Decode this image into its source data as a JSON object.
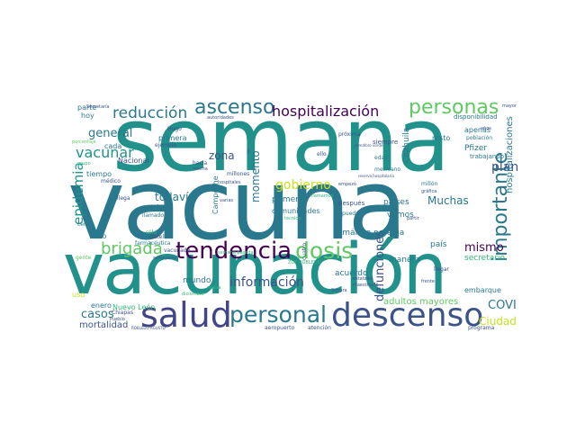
{
  "colors": {
    "teal": "#21918c",
    "teal_dark": "#2a788e",
    "blue": "#3b528b",
    "indigo": "#414487",
    "purple": "#440154",
    "green": "#5ec962",
    "green_dark": "#35b779",
    "yellow": "#c8e020",
    "yellow_bright": "#fde725"
  },
  "words": {
    "semana": "semana",
    "vacuna": "vacuna",
    "vacunacion": "vacunación",
    "salud": "salud",
    "descenso": "descenso",
    "personal": "personal",
    "tendencia": "tendencia",
    "dosis": "dosis",
    "importante": "importante",
    "personas": "personas",
    "ascenso": "ascenso",
    "hospitalizacion": "hospitalización",
    "reduccion": "reducción",
    "brigada": "brigada",
    "vacunar": "vacunar",
    "general": "general",
    "epidemia": "epidemia",
    "informacion": "información",
    "gobierno": "gobierno",
    "plan": "plan",
    "mismo": "mismo",
    "muchas": "Muchas",
    "todavia": "todavía",
    "casos": "casos",
    "covid": "COVID",
    "ciudad": "Ciudad",
    "zona": "zona",
    "momento": "momento",
    "defunciones": "defunciones",
    "hospitalizaciones": "hospitalizaciones",
    "mortalidad": "mortalidad",
    "parte": "parte",
    "hoy": "hoy",
    "tiempo": "tiempo",
    "cada": "cada",
    "nacional": "Nacional",
    "primera": "primera",
    "primero": "primero",
    "toda": "toda",
    "mundo": "mundo",
    "enero": "enero",
    "nuevo_leon": "Nuevo León",
    "semaforo_naranja": "semáforo naranja",
    "adultos_mayores": "adultos mayores",
    "paises": "países",
    "vemos": "vemos",
    "manera": "manera",
    "acuerdo": "acuerdo",
    "pais": "país",
    "secretario": "secretario",
    "comunidades": "comunidades",
    "campeche": "Campeche",
    "coahuila": "Coahuila",
    "resto": "resto",
    "pfizer": "Pfizer",
    "trabajando": "trabajando",
    "embarque": "embarque",
    "apenas": "apenas",
    "disponibilidad": "disponibilidad",
    "siempre": "siempre",
    "mexicano": "mexicano",
    "millon": "millón",
    "poblacion": "población",
    "edad": "edad",
    "semana_pasada": "semana pasada",
    "despues": "después",
    "pueden": "pueden",
    "llamado": "llamado",
    "sido": "sido",
    "medico": "médico",
    "llega": "llega",
    "hugo": "Hugo",
    "ejemplo": "ejemplo",
    "chiapas": "Chiapas",
    "gatell": "Gatell",
    "uso": "uso",
    "gente": "gente",
    "cerca": "cerca",
    "farmaceutica": "farmacéutica",
    "vacunado": "vacunado",
    "solo": "sólo",
    "semejante": "semejante",
    "millones": "millones",
    "hacia": "hacia",
    "misma": "misma",
    "hospitales": "hospitales",
    "pueblo": "Pueblo",
    "aeropuerto": "aeropuerto",
    "atencion": "atención",
    "programa": "programa",
    "llegar": "llegar",
    "partir": "partir",
    "maestros": "maestros",
    "estatales": "estatales",
    "sonora": "Sonora",
    "proxima": "próxima",
    "empezo": "empezó",
    "ello": "ello",
    "secretaria": "Secretaría",
    "mayor": "mayor",
    "grafica": "gráfica",
    "frente": "frente",
    "tecnico": "técnico",
    "diciembre": "diciembre",
    "roble_agusto": "ROBLEDO AGUSTO",
    "ze_robledo": "ZOÉ ROBLEDO",
    "autoridades": "autoridades",
    "reserva_hospitalaria": "reserva hospitalaria",
    "semaforo_verde": "semáforo verde",
    "porcentaje": "porcentaje",
    "grupo": "grupo",
    "ir": "ir",
    "anos": "años",
    "llamamos": "llamamos",
    "varias": "varias",
    "cuatro": "cuatro",
    "nueva": "nueva"
  }
}
